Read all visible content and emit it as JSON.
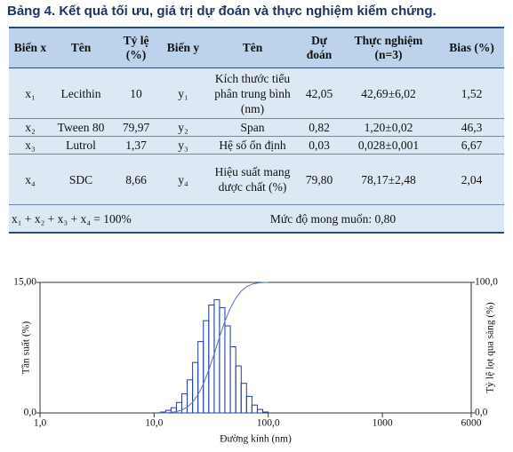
{
  "title": "Bảng 4. Kết quả tối ưu, giá trị dự đoán và thực nghiệm kiểm chứng.",
  "table": {
    "header": [
      "Biến x",
      "Tên",
      "Tỷ lệ (%)",
      "Biến y",
      "Tên",
      "Dự đoán",
      "Thực nghiệm (n=3)",
      "Bias (%)"
    ],
    "rows": [
      [
        "x₁",
        "Lecithin",
        "10",
        "y₁",
        "Kích thước tiểu phân trung bình (nm)",
        "42,05",
        "42,69±6,02",
        "1,52"
      ],
      [
        "x₂",
        "Tween 80",
        "79,97",
        "y₂",
        "Span",
        "0,82",
        "1,20±0,02",
        "46,3"
      ],
      [
        "x₃",
        "Lutrol",
        "1,37",
        "y₃",
        "Hệ số ổn định",
        "0,03",
        "0,028±0,001",
        "6,67"
      ],
      [
        "x₄",
        "SDC",
        "8,66",
        "y₄",
        "Hiệu suất mang dược chất (%)",
        "79,80",
        "78,17±2,48",
        "2,04"
      ]
    ],
    "footer": [
      "x₁ + x₂ + x₃ + x₄ = 100%",
      "Mức độ mong muốn: 0,80"
    ]
  },
  "chart": {
    "type": "histogram",
    "xlabel": "Đường kính (nm)",
    "ylabel": "Tần suất (%)",
    "y2label": "Tỷ lệ lọt qua sàng (%)",
    "xscale": "log",
    "xlim": [
      1,
      6000
    ],
    "xticks": [
      {
        "value": 1,
        "label": "1,0"
      },
      {
        "value": 10,
        "label": "10,0"
      },
      {
        "value": 100,
        "label": "100,0"
      },
      1000,
      6000
    ],
    "ylim": [
      0,
      15
    ],
    "yticks": [
      {
        "value": 0,
        "label": "0,0"
      },
      {
        "value": 15,
        "label": "15,00"
      }
    ],
    "y2lim": [
      0,
      100
    ],
    "y2ticks": [
      {
        "value": 0,
        "label": "0,0"
      },
      {
        "value": 100,
        "label": "100,0"
      }
    ],
    "bins": [
      11.3,
      12.6,
      14.05,
      15.67,
      17.47,
      19.48,
      21.72,
      24.22,
      27.0,
      30.1,
      33.6,
      37.4,
      41.7,
      46.5,
      51.9,
      57.9,
      64.5,
      71.9,
      80.2,
      89.4,
      100
    ],
    "values": [
      0.1,
      0.3,
      0.6,
      1.2,
      2.2,
      3.8,
      5.8,
      8.2,
      10.6,
      12.4,
      13.0,
      12.1,
      10.0,
      7.6,
      5.4,
      3.4,
      1.9,
      0.9,
      0.4,
      0.1
    ],
    "color": "#1f3f9a",
    "cumulative": {
      "axis": "y2",
      "color": "#5b6fc0",
      "x": [
        11.3,
        12.6,
        14.05,
        15.67,
        17.47,
        19.48,
        21.72,
        24.22,
        27.0,
        30.1,
        33.6,
        37.4,
        41.7,
        46.5,
        51.9,
        57.9,
        64.5,
        71.9,
        80.2,
        89.4,
        100
      ],
      "values": [
        0,
        0.1,
        0.4,
        1.0,
        2.2,
        4.4,
        8.2,
        14,
        22.2,
        32.8,
        45.2,
        58.2,
        70.3,
        80.3,
        87.9,
        93.3,
        96.7,
        98.6,
        99.5,
        99.9,
        100
      ]
    }
  }
}
